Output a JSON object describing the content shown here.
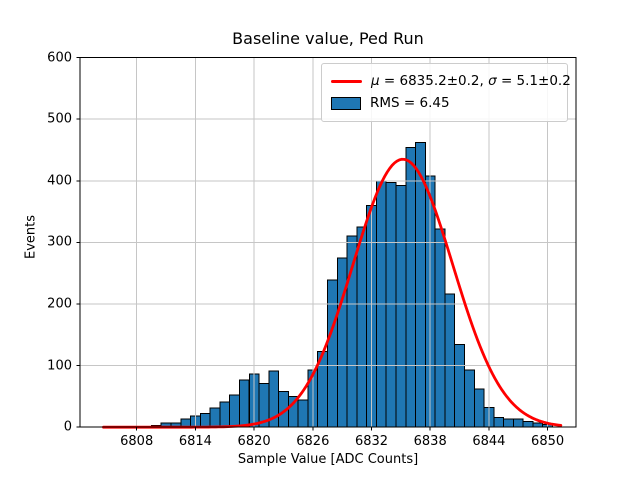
{
  "chart_data": {
    "type": "histogram",
    "title": "Baseline value, Ped Run",
    "xlabel": "Sample Value [ADC Counts]",
    "ylabel": "Events",
    "xlim": [
      6802.2,
      6852.9
    ],
    "ylim": [
      0,
      600
    ],
    "xticks": [
      6808,
      6814,
      6820,
      6826,
      6832,
      6838,
      6844,
      6850
    ],
    "yticks": [
      0,
      100,
      200,
      300,
      400,
      500,
      600
    ],
    "grid": true,
    "bin_width": 1,
    "bin_centers": [
      6809,
      6810,
      6811,
      6812,
      6813,
      6814,
      6815,
      6816,
      6817,
      6818,
      6819,
      6820,
      6821,
      6822,
      6823,
      6824,
      6825,
      6826,
      6827,
      6828,
      6829,
      6830,
      6831,
      6832,
      6833,
      6834,
      6835,
      6836,
      6837,
      6838,
      6839,
      6840,
      6841,
      6842,
      6843,
      6844,
      6845,
      6846,
      6847,
      6848,
      6849,
      6850
    ],
    "counts": [
      1,
      3,
      7,
      7,
      13,
      18,
      22,
      31,
      41,
      52,
      77,
      86,
      71,
      91,
      58,
      50,
      44,
      93,
      123,
      239,
      275,
      310,
      325,
      360,
      400,
      397,
      392,
      454,
      462,
      408,
      322,
      216,
      134,
      93,
      62,
      32,
      16,
      13,
      13,
      9,
      7,
      4
    ],
    "fit": {
      "type": "gaussian",
      "mu": 6835.2,
      "mu_err": 0.2,
      "sigma": 5.1,
      "sigma_err": 0.2,
      "amplitude": 435,
      "x_start": 6804.6,
      "x_end": 6851.4
    },
    "rms": 6.45,
    "legend": {
      "position": "upper right",
      "entries": [
        {
          "swatch": "line",
          "color": "#ff0000",
          "label_parts": {
            "mu_symbol": "μ",
            "mu_text": " = 6835.2±0.2, ",
            "sigma_symbol": "σ",
            "sigma_text": " = 5.1±0.2"
          }
        },
        {
          "swatch": "patch",
          "color": "#1f77b4",
          "label": "RMS = 6.45"
        }
      ]
    },
    "colors": {
      "bar_fill": "#1f77b4",
      "bar_edge": "#000000",
      "curve": "#ff0000",
      "grid": "#c6c6c6",
      "axes": "#000000",
      "text": "#000000",
      "legend_border": "#cccccc"
    }
  }
}
